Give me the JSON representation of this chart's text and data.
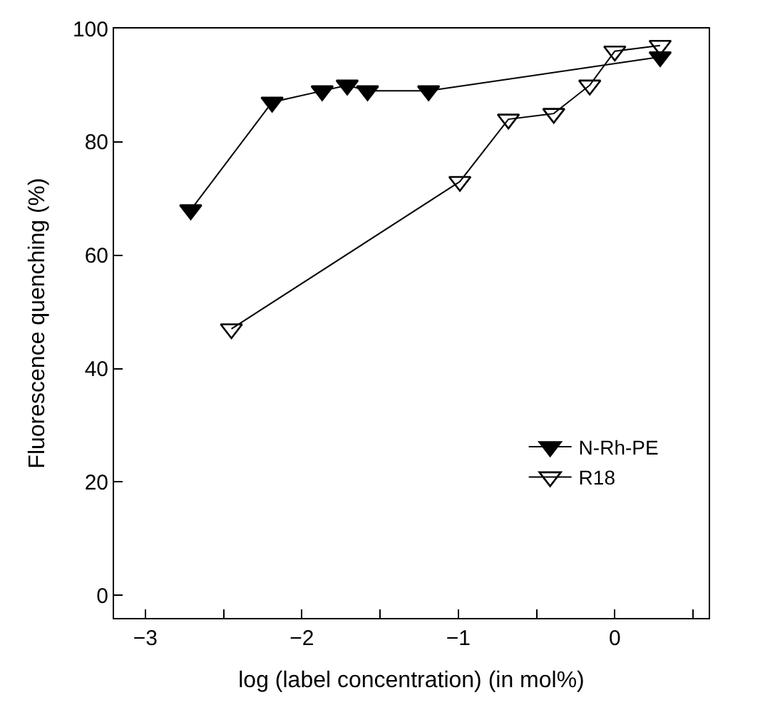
{
  "chart_data": {
    "type": "line",
    "xlabel": "log (label concentration) (in mol%)",
    "ylabel": "Fluorescence quenching (%)",
    "xlim": [
      -3.2,
      0.6
    ],
    "xticks": [
      -3,
      {
        "value": -2.5,
        "label": null
      },
      -2,
      {
        "value": -1.5,
        "label": null
      },
      -1,
      {
        "value": -0.5,
        "label": null
      },
      0,
      {
        "value": 0.5,
        "label": null
      }
    ],
    "ylim": [
      -4,
      100
    ],
    "yticks": [
      0,
      20,
      40,
      60,
      80,
      100
    ],
    "legend": "bottom right",
    "marker": "triangle",
    "line_style": "solid",
    "series": [
      {
        "name": "N-Rh-PE",
        "color": "#000000",
        "x": [
          -2.71,
          -2.19,
          -1.87,
          -1.71,
          -1.58,
          -1.19,
          0.29
        ],
        "values": [
          68,
          87,
          89,
          90,
          89,
          89,
          95
        ]
      },
      {
        "name": "R18",
        "color": "#000000",
        "x": [
          -2.45,
          -0.99,
          -0.68,
          -0.39,
          -0.16,
          0.0,
          0.29
        ],
        "values": [
          47,
          73,
          84,
          85,
          90,
          96,
          97
        ]
      }
    ]
  }
}
